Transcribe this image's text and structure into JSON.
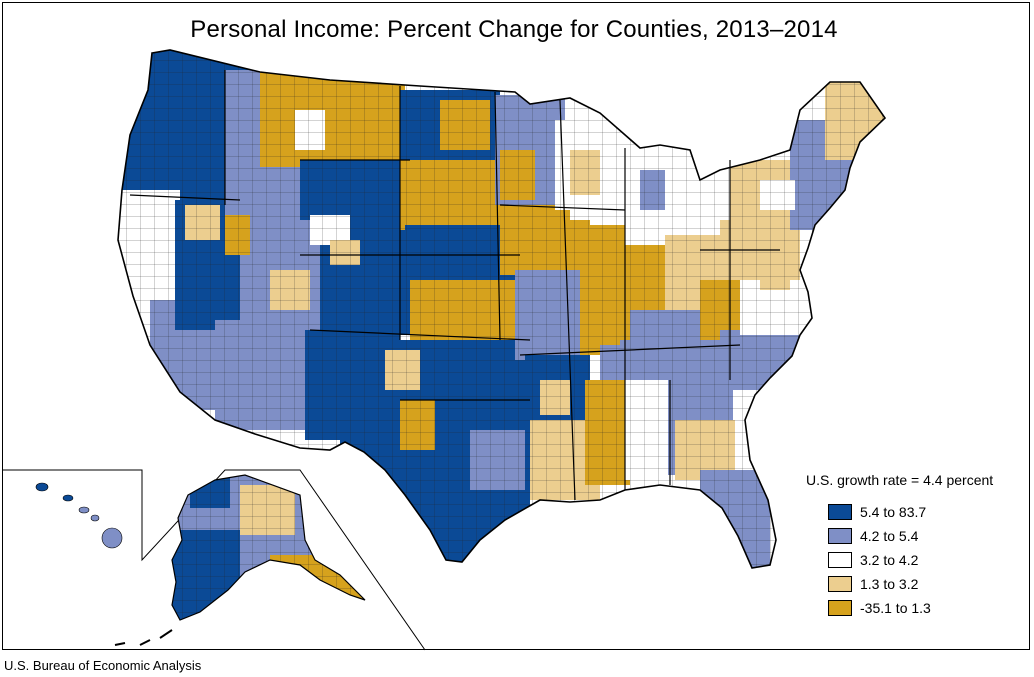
{
  "title": "Personal Income: Percent Change for Counties, 2013–2014",
  "source": "U.S. Bureau of Economic Analysis",
  "legend": {
    "title": "U.S. growth rate = 4.4 percent",
    "items": [
      {
        "label": "5.4 to 83.7",
        "color": "#0b4a96"
      },
      {
        "label": "4.2 to 5.4",
        "color": "#7f8fc6"
      },
      {
        "label": "3.2 to 4.2",
        "color": "#ffffff"
      },
      {
        "label": "1.3 to 3.2",
        "color": "#ecce8f"
      },
      {
        "label": "-35.1 to 1.3",
        "color": "#d6a21d"
      }
    ]
  }
}
